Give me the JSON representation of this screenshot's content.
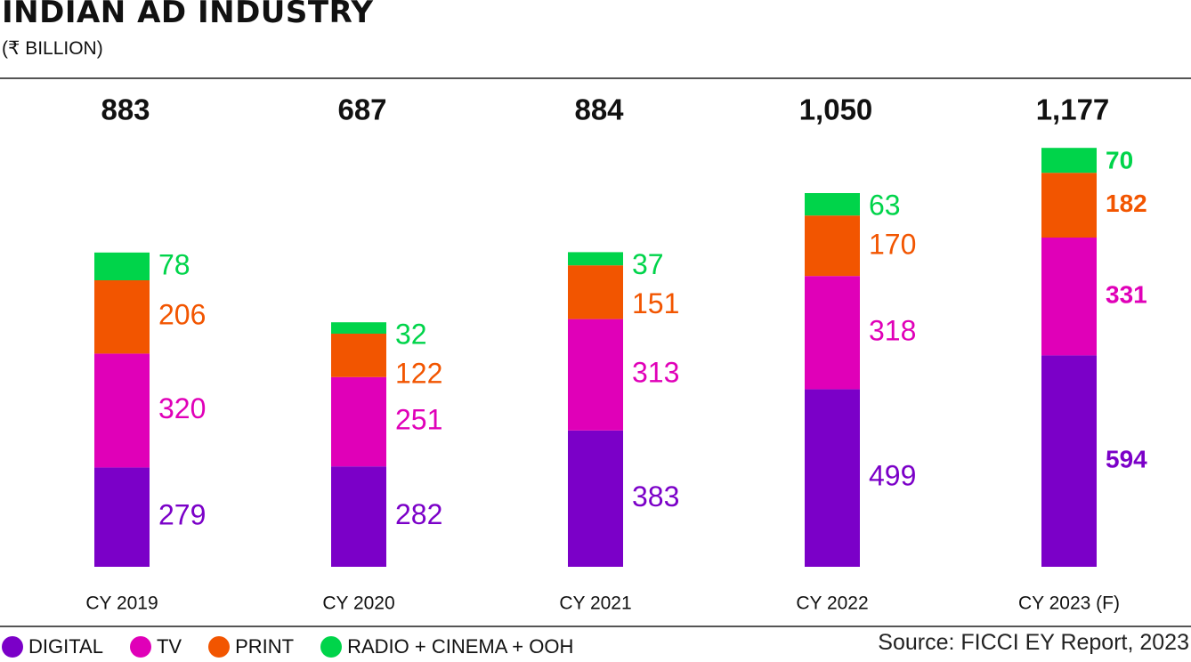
{
  "header": {
    "title": "INDIAN AD INDUSTRY",
    "subtitle": "(₹ BILLION)"
  },
  "source": "Source: FICCI EY Report, 2023",
  "legend": [
    {
      "label": "DIGITAL",
      "color": "#7b00c8"
    },
    {
      "label": "TV",
      "color": "#e000b8"
    },
    {
      "label": "PRINT",
      "color": "#f25500"
    },
    {
      "label": "RADIO + CINEMA + OOH",
      "color": "#00d44a"
    }
  ],
  "chart_data": {
    "type": "bar",
    "stacked": true,
    "title": "INDIAN AD INDUSTRY",
    "subtitle": "(₹ BILLION)",
    "categories": [
      "CY 2019",
      "CY 2020",
      "CY 2021",
      "CY 2022",
      "CY 2023 (F)"
    ],
    "totals": [
      "883",
      "687",
      "884",
      "1,050",
      "1,177"
    ],
    "series": [
      {
        "name": "DIGITAL",
        "color": "#7b00c8",
        "values": [
          279,
          282,
          383,
          499,
          594
        ]
      },
      {
        "name": "TV",
        "color": "#e000b8",
        "values": [
          320,
          251,
          313,
          318,
          331
        ]
      },
      {
        "name": "PRINT",
        "color": "#f25500",
        "values": [
          206,
          122,
          151,
          170,
          182
        ]
      },
      {
        "name": "RADIO + CINEMA + OOH",
        "color": "#00d44a",
        "values": [
          78,
          32,
          37,
          63,
          70
        ]
      }
    ],
    "grid": false,
    "legend_position": "bottom-left"
  }
}
